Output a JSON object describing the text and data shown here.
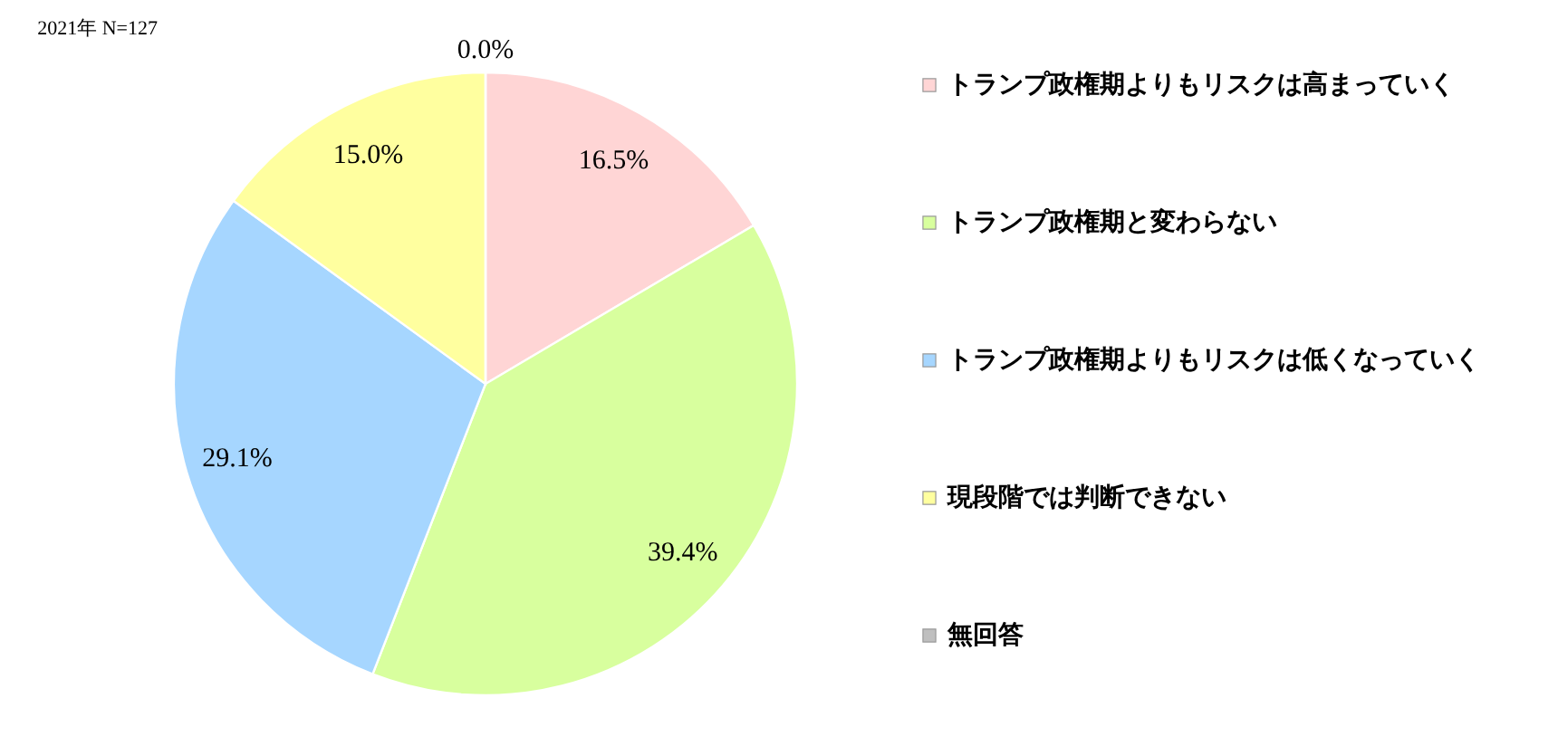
{
  "chart_data": {
    "type": "pie",
    "title": "2021年 N=127",
    "categories": [
      "トランプ政権期よりもリスクは高まっていく",
      "トランプ政権期と変わらない",
      "トランプ政権期よりもリスクは低くなっていく",
      "現段階では判断できない",
      "無回答"
    ],
    "values": [
      16.5,
      39.4,
      29.1,
      15.0,
      0.0
    ],
    "colors": [
      "#ffd5d5",
      "#d8ff9e",
      "#a6d6ff",
      "#ffff9f",
      "#bfbfbf"
    ],
    "value_labels": [
      "16.5%",
      "39.4%",
      "29.1%",
      "15.0%",
      "0.0%"
    ],
    "legend": "right"
  }
}
